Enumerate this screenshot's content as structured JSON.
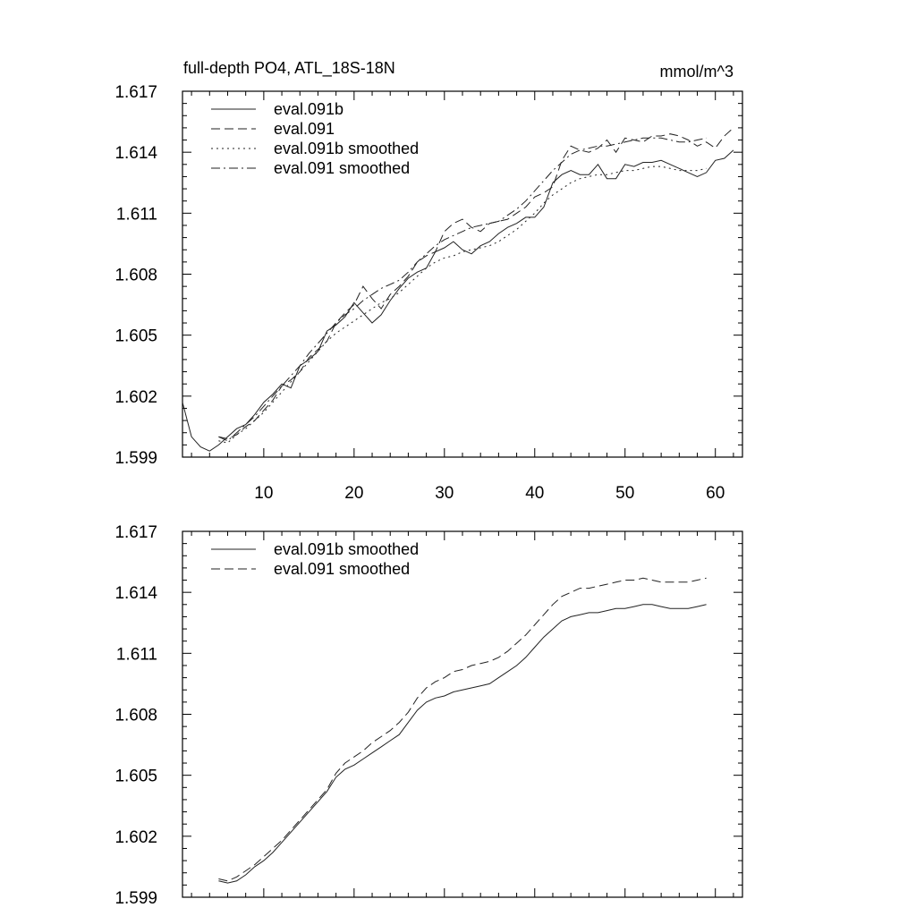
{
  "figure": {
    "title": "full-depth PO4, ATL_18S-18N",
    "units": "mmol/m^3"
  },
  "chart_data": [
    {
      "type": "line",
      "xlim": [
        1,
        63
      ],
      "ylim": [
        1.599,
        1.617
      ],
      "yticks": [
        1.599,
        1.602,
        1.605,
        1.608,
        1.611,
        1.614,
        1.617
      ],
      "ytick_labels": [
        "1.599",
        "1.602",
        "1.605",
        "1.608",
        "1.611",
        "1.614",
        "1.617"
      ],
      "xticks": [
        10,
        20,
        30,
        40,
        50,
        60
      ],
      "xtick_labels": [
        "10",
        "20",
        "30",
        "40",
        "50",
        "60"
      ],
      "legend_position": "top-left",
      "series": [
        {
          "name": "eval.091b",
          "dash": "solid",
          "x": [
            1,
            2,
            3,
            4,
            5,
            6,
            7,
            8,
            9,
            10,
            11,
            12,
            13,
            14,
            15,
            16,
            17,
            18,
            19,
            20,
            21,
            22,
            23,
            24,
            25,
            26,
            27,
            28,
            29,
            30,
            31,
            32,
            33,
            34,
            35,
            36,
            37,
            38,
            39,
            40,
            41,
            42,
            43,
            44,
            45,
            46,
            47,
            48,
            49,
            50,
            51,
            52,
            53,
            54,
            55,
            56,
            57,
            58,
            59,
            60,
            61,
            62
          ],
          "values": [
            1.6017,
            1.6,
            1.5995,
            1.5993,
            1.5996,
            1.6,
            1.6004,
            1.6006,
            1.6011,
            1.6017,
            1.6021,
            1.6026,
            1.6024,
            1.6035,
            1.6038,
            1.6042,
            1.6052,
            1.6055,
            1.6059,
            1.6066,
            1.6061,
            1.6056,
            1.606,
            1.6067,
            1.6073,
            1.6078,
            1.6081,
            1.6083,
            1.6091,
            1.6093,
            1.6096,
            1.6092,
            1.609,
            1.6094,
            1.6096,
            1.61,
            1.6103,
            1.6105,
            1.6108,
            1.6108,
            1.6113,
            1.6125,
            1.6129,
            1.6131,
            1.6129,
            1.6129,
            1.6134,
            1.6127,
            1.6127,
            1.6134,
            1.6133,
            1.6135,
            1.6135,
            1.6136,
            1.6134,
            1.6132,
            1.613,
            1.6128,
            1.613,
            1.6136,
            1.6137,
            1.6141
          ]
        },
        {
          "name": "eval.091",
          "dash": "dashed",
          "x": [
            5,
            6,
            7,
            8,
            9,
            10,
            11,
            12,
            13,
            14,
            15,
            16,
            17,
            18,
            19,
            20,
            21,
            22,
            23,
            24,
            25,
            26,
            27,
            28,
            29,
            30,
            31,
            32,
            33,
            34,
            35,
            36,
            37,
            38,
            39,
            40,
            41,
            42,
            43,
            44,
            45,
            46,
            47,
            48,
            49,
            50,
            51,
            52,
            53,
            54,
            55,
            56,
            57,
            58,
            59,
            60,
            61,
            62
          ],
          "values": [
            1.6,
            1.5999,
            1.6001,
            1.6005,
            1.6008,
            1.6013,
            1.6018,
            1.6025,
            1.6028,
            1.6032,
            1.6039,
            1.6043,
            1.6047,
            1.6056,
            1.6061,
            1.6065,
            1.6074,
            1.6068,
            1.6063,
            1.607,
            1.6074,
            1.6079,
            1.6086,
            1.6089,
            1.6091,
            1.6101,
            1.6105,
            1.6107,
            1.6103,
            1.6101,
            1.6105,
            1.6106,
            1.6107,
            1.611,
            1.6113,
            1.6118,
            1.612,
            1.6123,
            1.6136,
            1.6143,
            1.6141,
            1.614,
            1.6142,
            1.6146,
            1.614,
            1.6147,
            1.6146,
            1.6145,
            1.6148,
            1.6148,
            1.6149,
            1.6148,
            1.6146,
            1.6143,
            1.6145,
            1.6142,
            1.6148,
            1.6152
          ]
        },
        {
          "name": "eval.091b smoothed",
          "dash": "dotted",
          "x": [
            5,
            6,
            7,
            8,
            9,
            10,
            11,
            12,
            13,
            14,
            15,
            16,
            17,
            18,
            19,
            20,
            21,
            22,
            23,
            24,
            25,
            26,
            27,
            28,
            29,
            30,
            31,
            32,
            33,
            34,
            35,
            36,
            37,
            38,
            39,
            40,
            41,
            42,
            43,
            44,
            45,
            46,
            47,
            48,
            49,
            50,
            51,
            52,
            53,
            54,
            55,
            56,
            57,
            58,
            59
          ],
          "values": [
            1.5998,
            1.5997,
            1.6001,
            1.6004,
            1.6008,
            1.6012,
            1.6017,
            1.6022,
            1.6027,
            1.6032,
            1.6037,
            1.6042,
            1.6047,
            1.6051,
            1.6054,
            1.6057,
            1.606,
            1.6063,
            1.6066,
            1.6068,
            1.6071,
            1.6075,
            1.6079,
            1.6083,
            1.6086,
            1.6088,
            1.6089,
            1.6091,
            1.6092,
            1.6093,
            1.6094,
            1.6096,
            1.6099,
            1.6102,
            1.6106,
            1.611,
            1.6115,
            1.6119,
            1.6122,
            1.6125,
            1.6127,
            1.6128,
            1.6129,
            1.6129,
            1.613,
            1.6131,
            1.6131,
            1.6132,
            1.6133,
            1.6133,
            1.6132,
            1.6131,
            1.6131,
            1.6131,
            1.6132
          ]
        },
        {
          "name": "eval.091 smoothed",
          "dash": "dashdot",
          "x": [
            5,
            6,
            7,
            8,
            9,
            10,
            11,
            12,
            13,
            14,
            15,
            16,
            17,
            18,
            19,
            20,
            21,
            22,
            23,
            24,
            25,
            26,
            27,
            28,
            29,
            30,
            31,
            32,
            33,
            34,
            35,
            36,
            37,
            38,
            39,
            40,
            41,
            42,
            43,
            44,
            45,
            46,
            47,
            48,
            49,
            50,
            51,
            52,
            53,
            54,
            55,
            56,
            57,
            58,
            59
          ],
          "values": [
            1.6,
            1.5998,
            1.6002,
            1.6006,
            1.601,
            1.6015,
            1.602,
            1.6025,
            1.603,
            1.6035,
            1.6041,
            1.6046,
            1.6051,
            1.6056,
            1.606,
            1.6063,
            1.6067,
            1.607,
            1.6073,
            1.6075,
            1.6077,
            1.6081,
            1.6086,
            1.609,
            1.6094,
            1.6097,
            1.6099,
            1.6101,
            1.6103,
            1.6104,
            1.6105,
            1.6106,
            1.6109,
            1.6112,
            1.6116,
            1.6121,
            1.6126,
            1.6131,
            1.6135,
            1.6139,
            1.6141,
            1.6142,
            1.6143,
            1.6143,
            1.6144,
            1.6145,
            1.6146,
            1.6147,
            1.6147,
            1.6147,
            1.6146,
            1.6145,
            1.6145,
            1.6146,
            1.6147
          ]
        }
      ]
    },
    {
      "type": "line",
      "xlim": [
        1,
        63
      ],
      "ylim": [
        1.599,
        1.617
      ],
      "yticks": [
        1.599,
        1.602,
        1.605,
        1.608,
        1.611,
        1.614,
        1.617
      ],
      "ytick_labels": [
        "1.599",
        "1.602",
        "1.605",
        "1.608",
        "1.611",
        "1.614",
        "1.617"
      ],
      "xticks": [
        10,
        20,
        30,
        40,
        50,
        60
      ],
      "legend_position": "top-left",
      "series": [
        {
          "name": "eval.091b smoothed",
          "dash": "solid",
          "x": [
            5,
            6,
            7,
            8,
            9,
            10,
            11,
            12,
            13,
            14,
            15,
            16,
            17,
            18,
            19,
            20,
            21,
            22,
            23,
            24,
            25,
            26,
            27,
            28,
            29,
            30,
            31,
            32,
            33,
            34,
            35,
            36,
            37,
            38,
            39,
            40,
            41,
            42,
            43,
            44,
            45,
            46,
            47,
            48,
            49,
            50,
            51,
            52,
            53,
            54,
            55,
            56,
            57,
            58,
            59
          ],
          "values": [
            1.5998,
            1.5997,
            1.5998,
            1.6001,
            1.6005,
            1.6008,
            1.6012,
            1.6017,
            1.6022,
            1.6027,
            1.6032,
            1.6037,
            1.6042,
            1.6049,
            1.6053,
            1.6055,
            1.6058,
            1.6061,
            1.6064,
            1.6067,
            1.607,
            1.6076,
            1.6082,
            1.6086,
            1.6088,
            1.6089,
            1.6091,
            1.6092,
            1.6093,
            1.6094,
            1.6095,
            1.6098,
            1.6101,
            1.6104,
            1.6108,
            1.6113,
            1.6118,
            1.6122,
            1.6126,
            1.6128,
            1.6129,
            1.613,
            1.613,
            1.6131,
            1.6132,
            1.6132,
            1.6133,
            1.6134,
            1.6134,
            1.6133,
            1.6132,
            1.6132,
            1.6132,
            1.6133,
            1.6134
          ]
        },
        {
          "name": "eval.091 smoothed",
          "dash": "dashed",
          "x": [
            5,
            6,
            7,
            8,
            9,
            10,
            11,
            12,
            13,
            14,
            15,
            16,
            17,
            18,
            19,
            20,
            21,
            22,
            23,
            24,
            25,
            26,
            27,
            28,
            29,
            30,
            31,
            32,
            33,
            34,
            35,
            36,
            37,
            38,
            39,
            40,
            41,
            42,
            43,
            44,
            45,
            46,
            47,
            48,
            49,
            50,
            51,
            52,
            53,
            54,
            55,
            56,
            57,
            58,
            59
          ],
          "values": [
            1.5999,
            1.5998,
            1.6,
            1.6003,
            1.6006,
            1.601,
            1.6014,
            1.6018,
            1.6023,
            1.6028,
            1.6033,
            1.6038,
            1.6043,
            1.6051,
            1.6056,
            1.6059,
            1.6062,
            1.6066,
            1.6069,
            1.6072,
            1.6076,
            1.6081,
            1.6088,
            1.6093,
            1.6096,
            1.6098,
            1.6101,
            1.6102,
            1.6104,
            1.6105,
            1.6106,
            1.6108,
            1.6111,
            1.6115,
            1.6119,
            1.6124,
            1.6129,
            1.6134,
            1.6138,
            1.614,
            1.6142,
            1.6142,
            1.6143,
            1.6144,
            1.6145,
            1.6146,
            1.6146,
            1.6147,
            1.6146,
            1.6145,
            1.6145,
            1.6145,
            1.6145,
            1.6146,
            1.6147
          ]
        }
      ]
    }
  ]
}
